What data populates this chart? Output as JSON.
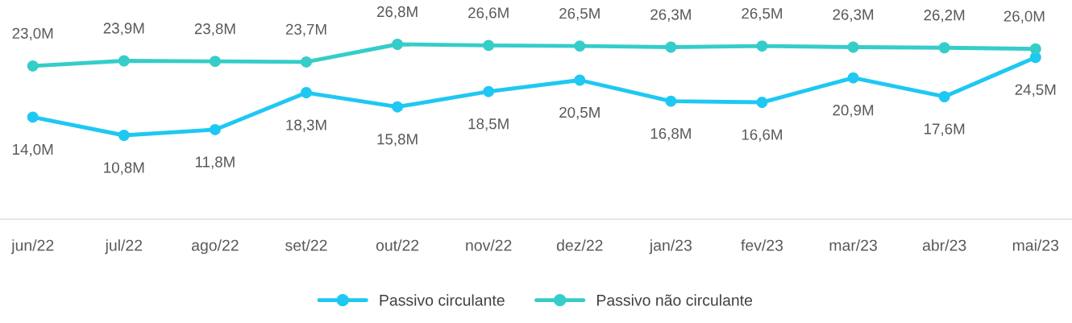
{
  "chart_data": {
    "type": "line",
    "categories": [
      "jun/22",
      "jul/22",
      "ago/22",
      "set/22",
      "out/22",
      "nov/22",
      "dez/22",
      "jan/23",
      "fev/23",
      "mar/23",
      "abr/23",
      "mai/23"
    ],
    "series": [
      {
        "name": "Passivo circulante",
        "color": "#1ec8f2",
        "values": [
          14.0,
          10.8,
          11.8,
          18.3,
          15.8,
          18.5,
          20.5,
          16.8,
          16.6,
          20.9,
          17.6,
          24.5
        ],
        "value_labels": [
          "14,0M",
          "10,8M",
          "11,8M",
          "18,3M",
          "15,8M",
          "18,5M",
          "20,5M",
          "16,8M",
          "16,6M",
          "20,9M",
          "17,6M",
          "24,5M"
        ]
      },
      {
        "name": "Passivo não circulante",
        "color": "#35cdc9",
        "values": [
          23.0,
          23.9,
          23.8,
          23.7,
          26.8,
          26.6,
          26.5,
          26.3,
          26.5,
          26.3,
          26.2,
          26.0
        ],
        "value_labels": [
          "23,0M",
          "23,9M",
          "23,8M",
          "23,7M",
          "26,8M",
          "26,6M",
          "26,5M",
          "26,3M",
          "26,5M",
          "26,3M",
          "26,2M",
          "26,0M"
        ]
      }
    ],
    "tick_labels": "x",
    "grid": false,
    "legend": "bottom",
    "marker": "circle",
    "line_style": "solid"
  }
}
